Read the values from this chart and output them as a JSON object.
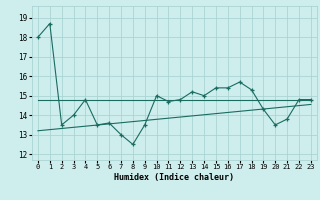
{
  "xlabel": "Humidex (Indice chaleur)",
  "bg_color": "#ceeeed",
  "grid_color": "#aad4d3",
  "line_color": "#1a6b60",
  "xlim": [
    -0.5,
    23.5
  ],
  "ylim": [
    11.7,
    19.6
  ],
  "yticks": [
    12,
    13,
    14,
    15,
    16,
    17,
    18,
    19
  ],
  "xticks": [
    0,
    1,
    2,
    3,
    4,
    5,
    6,
    7,
    8,
    9,
    10,
    11,
    12,
    13,
    14,
    15,
    16,
    17,
    18,
    19,
    20,
    21,
    22,
    23
  ],
  "line1_x": [
    0,
    1,
    2,
    3,
    4,
    5,
    6,
    7,
    8,
    9,
    10,
    11,
    12,
    13,
    14,
    15,
    16,
    17,
    18,
    19,
    20,
    21,
    22,
    23
  ],
  "line1_y": [
    18.0,
    18.7,
    13.5,
    14.0,
    14.8,
    13.5,
    13.6,
    13.0,
    12.5,
    13.5,
    15.0,
    14.7,
    14.8,
    15.2,
    15.0,
    15.4,
    15.4,
    15.7,
    15.3,
    14.3,
    13.5,
    13.8,
    14.8,
    14.8
  ],
  "line2_x": [
    0,
    23
  ],
  "line2_y": [
    14.8,
    14.8
  ],
  "line3_x": [
    0,
    23
  ],
  "line3_y": [
    13.2,
    14.55
  ]
}
